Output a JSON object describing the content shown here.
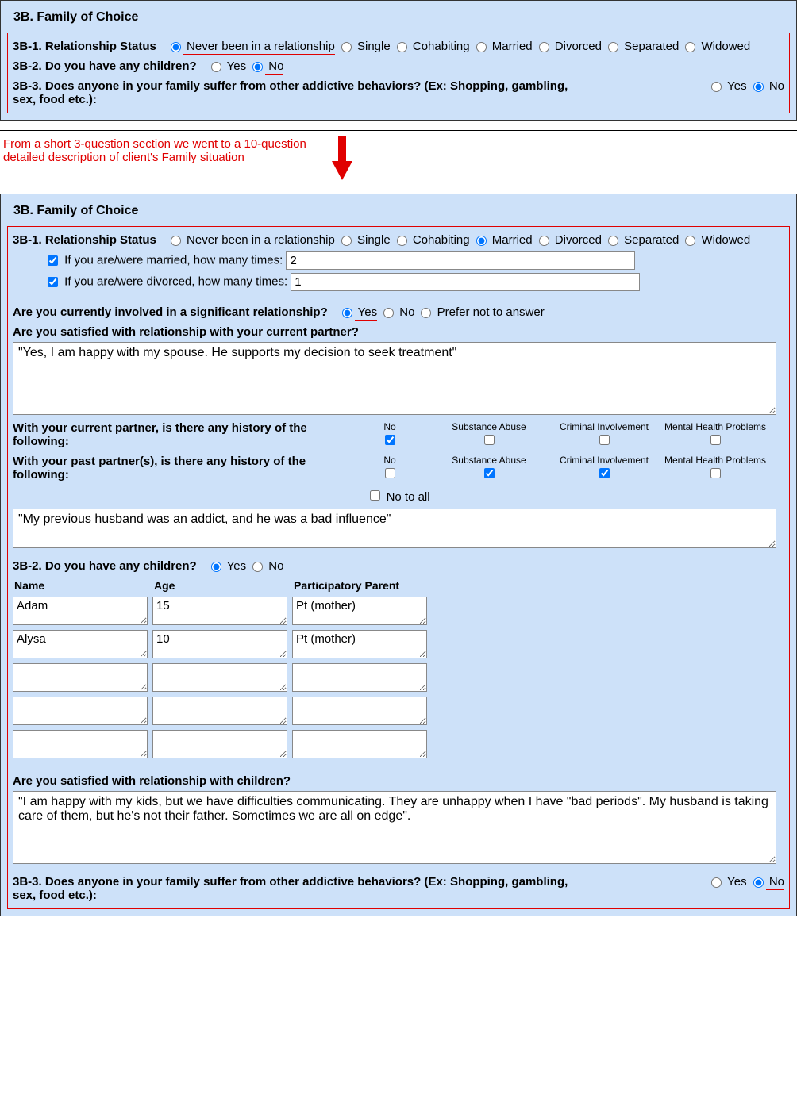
{
  "colors": {
    "panel_bg": "#cde1f9",
    "red": "#e00000",
    "border": "#333333",
    "input_border": "#888888"
  },
  "topPanel": {
    "title": "3B. Family of Choice",
    "q1": {
      "label": "3B-1. Relationship Status",
      "options": [
        "Never been in a relationship",
        "Single",
        "Cohabiting",
        "Married",
        "Divorced",
        "Separated",
        "Widowed"
      ],
      "selected": "Never been in a relationship",
      "underline": [
        "Never been in a relationship"
      ]
    },
    "q2": {
      "label": "3B-2. Do you have any children?",
      "options": [
        "Yes",
        "No"
      ],
      "selected": "No",
      "underline": [
        "No"
      ]
    },
    "q3": {
      "label": "3B-3. Does anyone in your family suffer from other addictive behaviors? (Ex: Shopping, gambling, sex, food etc.):",
      "options": [
        "Yes",
        "No"
      ],
      "selected": "No",
      "underline": [
        "No"
      ]
    }
  },
  "annotation": "From a short 3-question section we went to a 10-question detailed description of client's Family situation",
  "bottomPanel": {
    "title": "3B. Family of Choice",
    "q1": {
      "label": "3B-1. Relationship Status",
      "options": [
        "Never been in a relationship",
        "Single",
        "Cohabiting",
        "Married",
        "Divorced",
        "Separated",
        "Widowed"
      ],
      "selected": "Married",
      "underline": [
        "Single",
        "Cohabiting",
        "Married",
        "Divorced",
        "Separated",
        "Widowed"
      ]
    },
    "sub1a": {
      "label": "If you are/were married, how many times:",
      "checked": true,
      "value": "2"
    },
    "sub1b": {
      "label": "If you are/were divorced, how many times:",
      "checked": true,
      "value": "1"
    },
    "sigRel": {
      "label": "Are you currently involved in a significant relationship?",
      "options": [
        "Yes",
        "No",
        "Prefer not to answer"
      ],
      "selected": "Yes",
      "underline": [
        "Yes"
      ]
    },
    "satPartnerLabel": "Are you satisfied with relationship with your current partner?",
    "satPartnerText": "\"Yes, I am happy with my spouse. He supports my decision to seek treatment\"",
    "histCols": [
      "No",
      "Substance Abuse",
      "Criminal Involvement",
      "Mental Health Problems"
    ],
    "histCurrent": {
      "label": "With your current partner, is there any history of the following:",
      "checked": [
        true,
        false,
        false,
        false
      ]
    },
    "histPast": {
      "label": "With your past partner(s), is there any history of the following:",
      "checked": [
        false,
        true,
        true,
        false
      ]
    },
    "noToAll": {
      "label": "No to all",
      "checked": false
    },
    "pastText": "\"My previous husband was an addict, and he was a bad influence\"",
    "q2": {
      "label": "3B-2. Do you have any children?",
      "options": [
        "Yes",
        "No"
      ],
      "selected": "Yes",
      "underline": [
        "Yes"
      ]
    },
    "childCols": [
      "Name",
      "Age",
      "Participatory Parent"
    ],
    "children": [
      {
        "name": "Adam",
        "age": "15",
        "pp": "Pt (mother)"
      },
      {
        "name": "Alysa",
        "age": "10",
        "pp": "Pt (mother)"
      },
      {
        "name": "",
        "age": "",
        "pp": ""
      },
      {
        "name": "",
        "age": "",
        "pp": ""
      },
      {
        "name": "",
        "age": "",
        "pp": ""
      }
    ],
    "satChildrenLabel": "Are you satisfied with relationship with children?",
    "satChildrenText": "\"I am happy with my kids, but we have difficulties communicating. They are unhappy when I have \"bad periods\". My husband is taking care of them, but he's not their father. Sometimes we are all on edge\".",
    "q3": {
      "label": "3B-3. Does anyone in your family suffer from other addictive behaviors? (Ex: Shopping, gambling, sex, food etc.):",
      "options": [
        "Yes",
        "No"
      ],
      "selected": "No",
      "underline": [
        "No"
      ]
    }
  }
}
